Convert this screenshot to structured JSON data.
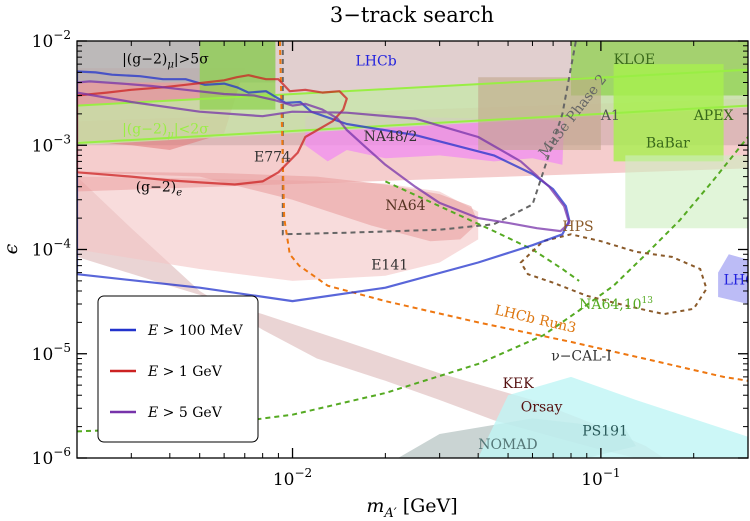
{
  "chart_data": {
    "type": "area",
    "title": "3−track search",
    "xlabel_main": "m",
    "xlabel_sub": "A′",
    "xlabel_unit": "[GeV]",
    "ylabel": "ϵ",
    "x_scale": "log",
    "y_scale": "log",
    "xlim": [
      0.002,
      0.3
    ],
    "ylim": [
      1e-06,
      0.01
    ],
    "x_ticks": [
      {
        "value": 0.01,
        "base": "10",
        "exp": "−2"
      },
      {
        "value": 0.1,
        "base": "10",
        "exp": "−1"
      }
    ],
    "y_ticks": [
      {
        "value": 0.01,
        "base": "10",
        "exp": "−2"
      },
      {
        "value": 0.001,
        "base": "10",
        "exp": "−3"
      },
      {
        "value": 0.0001,
        "base": "10",
        "exp": "−4"
      },
      {
        "value": 1e-05,
        "base": "10",
        "exp": "−5"
      },
      {
        "value": 1e-06,
        "base": "10",
        "exp": "−6"
      }
    ],
    "legend_position": "lower-left",
    "series": [
      {
        "name": "E > 100 MeV",
        "legend_main": "E",
        "legend_rest": " > 100 MeV",
        "color": "#2233cc",
        "x": [
          0.002,
          0.005,
          0.01,
          0.02,
          0.04,
          0.06,
          0.075,
          0.079,
          0.077,
          0.07,
          0.06,
          0.045,
          0.025,
          0.015,
          0.0115,
          0.0106,
          0.0095,
          0.0082,
          0.0072,
          0.0066,
          0.006,
          0.0052,
          0.0045,
          0.0038,
          0.0032,
          0.0026,
          0.0023,
          0.002
        ],
        "y": [
          5.8e-05,
          4.3e-05,
          3.2e-05,
          4.3e-05,
          7.5e-05,
          0.00011,
          0.00014,
          0.00019,
          0.00026,
          0.00038,
          0.00053,
          0.0008,
          0.00125,
          0.0016,
          0.0021,
          0.0026,
          0.00255,
          0.0033,
          0.0032,
          0.0036,
          0.0039,
          0.0038,
          0.0043,
          0.0043,
          0.0046,
          0.00475,
          0.005,
          0.0051
        ]
      },
      {
        "name": "E > 1 GeV",
        "legend_main": "E",
        "legend_rest": " > 1 GeV",
        "color": "#cc2222",
        "x": [
          0.002,
          0.003,
          0.004,
          0.005,
          0.0065,
          0.008,
          0.009,
          0.0104,
          0.011,
          0.0135,
          0.0146,
          0.015,
          0.0142,
          0.0125,
          0.011,
          0.0098,
          0.009,
          0.0082,
          0.0072,
          0.0066,
          0.006,
          0.0052,
          0.0045,
          0.0038,
          0.003,
          0.0025,
          0.002
        ],
        "y": [
          0.00055,
          0.0005,
          0.00046,
          0.00044,
          0.00042,
          0.00045,
          0.00055,
          0.00085,
          0.0012,
          0.0017,
          0.0022,
          0.0028,
          0.0033,
          0.0032,
          0.0034,
          0.0033,
          0.0043,
          0.0043,
          0.0047,
          0.0045,
          0.0042,
          0.004,
          0.0038,
          0.0036,
          0.0034,
          0.0032,
          0.003
        ]
      },
      {
        "name": "E > 5 GeV",
        "legend_main": "E",
        "legend_rest": " > 5 GeV",
        "color": "#7733aa",
        "x": [
          0.002,
          0.003,
          0.005,
          0.008,
          0.01,
          0.015,
          0.025,
          0.04,
          0.055,
          0.068,
          0.076,
          0.079,
          0.074,
          0.062,
          0.05,
          0.04,
          0.03,
          0.025,
          0.02,
          0.017,
          0.015,
          0.014,
          0.0125,
          0.011,
          0.01,
          0.0088,
          0.0075,
          0.006,
          0.0045,
          0.0035,
          0.0028,
          0.0022,
          0.002
        ],
        "y": [
          0.0032,
          0.0026,
          0.0021,
          0.0019,
          0.0021,
          0.00205,
          0.0018,
          0.0012,
          0.0007,
          0.0004,
          0.00026,
          0.00018,
          0.00015,
          0.00016,
          0.00018,
          0.0002,
          0.00028,
          0.0004,
          0.00065,
          0.001,
          0.0014,
          0.0018,
          0.0022,
          0.0025,
          0.0024,
          0.0027,
          0.003,
          0.0031,
          0.0034,
          0.0037,
          0.0039,
          0.0041,
          0.004
        ]
      }
    ],
    "lines": [
      {
        "name": "|(g−2)μ|>5σ band edge",
        "color": "#99ee44",
        "width": 2,
        "x": [
          0.002,
          0.3
        ],
        "y": [
          0.0024,
          0.0053
        ]
      },
      {
        "name": "|(g−2)μ|<2σ band edge",
        "color": "#99ee44",
        "width": 2,
        "x": [
          0.002,
          0.3
        ],
        "y": [
          0.00105,
          0.0024
        ]
      },
      {
        "name": "Mu3e Phase 2",
        "color": "#666666",
        "dash": "5,4",
        "width": 2,
        "x": [
          0.0093,
          0.0093,
          0.015,
          0.03,
          0.045,
          0.06,
          0.075,
          0.083
        ],
        "y": [
          0.01,
          0.00014,
          0.000145,
          0.000155,
          0.000175,
          0.00027,
          0.002,
          0.01
        ]
      },
      {
        "name": "LHCb Run3",
        "color": "#ee7711",
        "dash": "5,4",
        "width": 2,
        "x": [
          0.0091,
          0.0094,
          0.0098,
          0.0105,
          0.013,
          0.02,
          0.04,
          0.08,
          0.15,
          0.25,
          0.3
        ],
        "y": [
          0.01,
          0.0002,
          9e-05,
          7e-05,
          4.5e-05,
          3.2e-05,
          2e-05,
          1.3e-05,
          8.5e-06,
          6e-06,
          5.5e-06
        ]
      },
      {
        "name": "NA64,10^13",
        "color": "#55aa22",
        "dash": "5,4",
        "width": 2,
        "x": [
          0.002,
          0.005,
          0.01,
          0.02,
          0.04,
          0.065,
          0.085,
          0.11,
          0.14,
          0.18,
          0.23,
          0.3
        ],
        "y": [
          1.8e-06,
          2e-06,
          2.6e-06,
          4.2e-06,
          8e-06,
          1.5e-05,
          2.6e-05,
          4.5e-05,
          9e-05,
          0.00019,
          0.00045,
          0.0012
        ]
      },
      {
        "name": "NA64,10^13 upper",
        "color": "#55aa22",
        "dash": "5,4",
        "width": 2,
        "x": [
          0.02,
          0.03,
          0.045,
          0.06,
          0.075,
          0.085
        ],
        "y": [
          0.00045,
          0.00026,
          0.00015,
          0.0001,
          6.5e-05,
          5e-05
        ]
      },
      {
        "name": "HPS",
        "color": "#8a5a2a",
        "dash": "4,4",
        "width": 2,
        "closed": true,
        "x": [
          0.055,
          0.065,
          0.08,
          0.1,
          0.13,
          0.17,
          0.21,
          0.22,
          0.2,
          0.16,
          0.12,
          0.09,
          0.07,
          0.058
        ],
        "y": [
          7.5e-05,
          0.00012,
          0.00014,
          0.00012,
          9.5e-05,
          8.5e-05,
          6.5e-05,
          4.2e-05,
          2.7e-05,
          2.4e-05,
          2.9e-05,
          3.6e-05,
          4.8e-05,
          5.8e-05
        ]
      }
    ],
    "regions": [
      {
        "name": "beam-dump bulk",
        "fill": "#d9b1b1",
        "opacity": 0.55,
        "x": [
          0.002,
          0.002,
          0.004,
          0.008,
          0.015,
          0.03,
          0.06,
          0.1,
          0.14,
          0.16,
          0.15,
          0.13,
          0.1,
          0.07,
          0.045,
          0.03,
          0.02,
          0.012,
          0.008,
          0.005,
          0.003
        ],
        "y": [
          0.0005,
          8.5e-05,
          4.5e-05,
          2.4e-05,
          1.3e-05,
          6.5e-06,
          3.6e-06,
          2e-06,
          1.3e-06,
          1e-06,
          1e-06,
          1e-06,
          1.2e-06,
          1.6e-06,
          2.3e-06,
          3.6e-06,
          5.5e-06,
          9e-06,
          1.7e-05,
          4e-05,
          0.00016
        ]
      },
      {
        "name": "E141",
        "fill": "#f4c5c5",
        "opacity": 0.6,
        "x": [
          0.002,
          0.005,
          0.01,
          0.02,
          0.03,
          0.04,
          0.04,
          0.03,
          0.02,
          0.01,
          0.005,
          0.002
        ],
        "y": [
          0.0001,
          6.5e-05,
          5e-05,
          5.6e-05,
          7.5e-05,
          0.000125,
          0.00023,
          0.00036,
          0.00043,
          0.00046,
          0.00048,
          0.0005
        ]
      },
      {
        "name": "(g-2)e",
        "fill": "#e89090",
        "opacity": 0.45,
        "x": [
          0.002,
          0.3,
          0.3,
          0.002
        ],
        "y": [
          0.00036,
          0.0006,
          0.0028,
          0.0017
        ]
      },
      {
        "name": "BaBar/NA48/2 upper",
        "fill": "#c9a7a7",
        "opacity": 0.55,
        "x": [
          0.002,
          0.3,
          0.3,
          0.002
        ],
        "y": [
          0.001,
          0.001,
          0.01,
          0.01
        ]
      },
      {
        "name": "NA48/2 magenta",
        "fill": "#f08cf0",
        "opacity": 0.75,
        "x": [
          0.011,
          0.013,
          0.015,
          0.02,
          0.03,
          0.045,
          0.06,
          0.075,
          0.076,
          0.06,
          0.04,
          0.02,
          0.011
        ],
        "y": [
          0.001,
          0.0007,
          0.0009,
          0.00075,
          0.0008,
          0.0007,
          0.00075,
          0.00065,
          0.0017,
          0.0018,
          0.0018,
          0.0019,
          0.0019
        ]
      },
      {
        "name": "E774",
        "fill": "#e06868",
        "opacity": 0.45,
        "x": [
          0.002,
          0.002,
          0.007,
          0.006,
          0.004,
          0.003
        ],
        "y": [
          0.0011,
          0.0055,
          0.0055,
          0.0013,
          0.0009,
          0.001
        ]
      },
      {
        "name": "LHCb green band",
        "fill": "#c5e8a8",
        "opacity": 0.75,
        "x": [
          0.002,
          0.3,
          0.3,
          0.002
        ],
        "y": [
          0.001,
          0.0023,
          0.0055,
          0.0024
        ]
      },
      {
        "name": "(g-2)mu grey",
        "fill": "#b5b5b5",
        "opacity": 0.85,
        "x": [
          0.002,
          0.0088,
          0.0088,
          0.002
        ],
        "y": [
          0.004,
          0.004,
          0.01,
          0.01
        ]
      },
      {
        "name": "KLOE",
        "fill": "#8fd24f",
        "opacity": 0.75,
        "x": [
          0.005,
          0.0088,
          0.0088,
          0.005
        ],
        "y": [
          0.0022,
          0.0022,
          0.01,
          0.01
        ]
      },
      {
        "name": "KLOE right",
        "fill": "#8fd24f",
        "opacity": 0.75,
        "x": [
          0.08,
          0.3,
          0.3,
          0.08
        ],
        "y": [
          0.003,
          0.003,
          0.01,
          0.01
        ]
      },
      {
        "name": "APEX",
        "fill": "#a8f04e",
        "opacity": 0.8,
        "x": [
          0.11,
          0.25,
          0.25,
          0.11
        ],
        "y": [
          0.0007,
          0.0007,
          0.006,
          0.006
        ]
      },
      {
        "name": "A1",
        "fill": "#c1a78b",
        "opacity": 0.6,
        "x": [
          0.04,
          0.1,
          0.1,
          0.04
        ],
        "y": [
          0.0009,
          0.0009,
          0.0045,
          0.0045
        ]
      },
      {
        "name": "BaBar light",
        "fill": "#cdeec0",
        "opacity": 0.6,
        "x": [
          0.12,
          0.3,
          0.3,
          0.12
        ],
        "y": [
          0.00016,
          0.00016,
          0.0008,
          0.0008
        ]
      },
      {
        "name": "NA64 ellipse",
        "fill": "#eaa0a0",
        "opacity": 0.6,
        "x": [
          0.002,
          0.005,
          0.01,
          0.018,
          0.028,
          0.035,
          0.04,
          0.038,
          0.03,
          0.02,
          0.012,
          0.006,
          0.002
        ],
        "y": [
          0.00055,
          0.0005,
          0.0003,
          0.00017,
          0.00012,
          0.000125,
          0.00018,
          0.00026,
          0.00034,
          0.00042,
          0.0005,
          0.00054,
          0.00056
        ]
      },
      {
        "name": "NOMAD",
        "fill": "#a6b8b6",
        "opacity": 0.6,
        "x": [
          0.022,
          0.05,
          0.09,
          0.13,
          0.12,
          0.06,
          0.03
        ],
        "y": [
          1e-06,
          1e-06,
          1e-06,
          1.3e-06,
          1.9e-06,
          2.4e-06,
          1.7e-06
        ]
      },
      {
        "name": "ν-CAL-I",
        "fill": "#bff5f5",
        "opacity": 0.8,
        "x": [
          0.04,
          0.08,
          0.15,
          0.3,
          0.3,
          0.13,
          0.08,
          0.05
        ],
        "y": [
          1e-06,
          1e-06,
          1e-06,
          1e-06,
          1.6e-06,
          3.6e-06,
          6e-06,
          4e-06
        ]
      },
      {
        "name": "LHCb blue patch",
        "fill": "#8f8ff0",
        "opacity": 0.6,
        "x": [
          0.24,
          0.3,
          0.3,
          0.26,
          0.24
        ],
        "y": [
          3.5e-05,
          3e-05,
          8e-05,
          9e-05,
          6e-05
        ]
      }
    ],
    "labels": [
      {
        "text": "KLOE",
        "x": 0.11,
        "y": 0.006,
        "color": "#3a6a1a"
      },
      {
        "text": "LHCb",
        "x": 0.016,
        "y": 0.0058,
        "color": "#2222dd"
      },
      {
        "text": "NA48/2",
        "x": 0.017,
        "y": 0.0011,
        "color": "#333333"
      },
      {
        "text": "A1",
        "x": 0.1,
        "y": 0.00175,
        "color": "#555555"
      },
      {
        "text": "APEX",
        "x": 0.2,
        "y": 0.00175,
        "color": "#3a6a1a"
      },
      {
        "text": "BaBar",
        "x": 0.14,
        "y": 0.00095,
        "color": "#3a6a1a"
      },
      {
        "text": "E774",
        "x": 0.0075,
        "y": 0.0007,
        "color": "#333333"
      },
      {
        "text": "NA64",
        "x": 0.02,
        "y": 0.00024,
        "color": "#553322"
      },
      {
        "text": "(g−2)",
        "x": 0.0031,
        "y": 0.00036,
        "color": "#000000"
      },
      {
        "text": "E141",
        "x": 0.018,
        "y": 6.4e-05,
        "color": "#333333"
      },
      {
        "text": "HPS",
        "x": 0.075,
        "y": 0.00015,
        "color": "#8a5a2a"
      },
      {
        "text": "LHCb",
        "x": 0.25,
        "y": 4.6e-05,
        "color": "#2222dd"
      },
      {
        "text": "LHCb Run3",
        "x": 0.045,
        "y": 2.4e-05,
        "color": "#dd7711",
        "rotate": 13
      },
      {
        "text": "NA64,10",
        "x": 0.085,
        "y": 2.7e-05,
        "color": "#55aa22"
      },
      {
        "text": "ν−CAL-I",
        "x": 0.069,
        "y": 8.6e-06,
        "color": "#333333"
      },
      {
        "text": "KEK",
        "x": 0.048,
        "y": 4.7e-06,
        "color": "#551111"
      },
      {
        "text": "Orsay",
        "x": 0.055,
        "y": 2.8e-06,
        "color": "#551111"
      },
      {
        "text": "PS191",
        "x": 0.087,
        "y": 1.65e-06,
        "color": "#2a5a5a"
      },
      {
        "text": "NOMAD",
        "x": 0.04,
        "y": 1.22e-06,
        "color": "#557777"
      },
      {
        "text": "Mu3e Phase 2",
        "x": 0.066,
        "y": 0.00075,
        "color": "#666666",
        "rotate": -52
      }
    ],
    "gm2_labels": {
      "upper": {
        "pre": "|(g−2)",
        "sub": "μ",
        "post": "|>5σ",
        "color": "#000000",
        "x": 0.0028,
        "y": 0.0061
      },
      "lower": {
        "pre": "|(g−2)",
        "sub": "μ",
        "post": "|<2σ",
        "color": "#99ee44",
        "x": 0.0028,
        "y": 0.0013
      },
      "e_sub": "e",
      "na64_sup": "13"
    }
  }
}
